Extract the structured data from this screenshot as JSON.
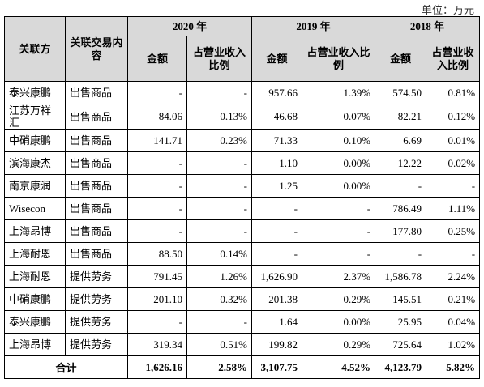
{
  "unit": "单位：万元",
  "table": {
    "header": {
      "party": "关联方",
      "content": "关联交易内容",
      "years": [
        {
          "year": "2020 年",
          "amount": "金额",
          "ratio": "占营业收入比例"
        },
        {
          "year": "2019 年",
          "amount": "金额",
          "ratio": "占营业收入比例"
        },
        {
          "year": "2018 年",
          "amount": "金额",
          "ratio": "占营业收入比例"
        }
      ]
    },
    "rows": [
      [
        "泰兴康鹏",
        "出售商品",
        "-",
        "-",
        "957.66",
        "1.39%",
        "574.50",
        "0.81%"
      ],
      [
        "江苏万祥汇",
        "出售商品",
        "84.06",
        "0.13%",
        "46.68",
        "0.07%",
        "82.21",
        "0.12%"
      ],
      [
        "中硝康鹏",
        "出售商品",
        "141.71",
        "0.23%",
        "71.33",
        "0.10%",
        "6.69",
        "0.01%"
      ],
      [
        "滨海康杰",
        "出售商品",
        "-",
        "-",
        "1.10",
        "0.00%",
        "12.22",
        "0.02%"
      ],
      [
        "南京康润",
        "出售商品",
        "-",
        "-",
        "1.25",
        "0.00%",
        "-",
        "-"
      ],
      [
        "Wisecon",
        "出售商品",
        "-",
        "-",
        "-",
        "-",
        "786.49",
        "1.11%"
      ],
      [
        "上海昂博",
        "出售商品",
        "-",
        "-",
        "-",
        "-",
        "177.80",
        "0.25%"
      ],
      [
        "上海耐恩",
        "出售商品",
        "88.50",
        "0.14%",
        "-",
        "-",
        "-",
        "-"
      ],
      [
        "上海耐恩",
        "提供劳务",
        "791.45",
        "1.26%",
        "1,626.90",
        "2.37%",
        "1,586.78",
        "2.24%"
      ],
      [
        "中硝康鹏",
        "提供劳务",
        "201.10",
        "0.32%",
        "201.38",
        "0.29%",
        "145.51",
        "0.21%"
      ],
      [
        "泰兴康鹏",
        "提供劳务",
        "-",
        "-",
        "1.64",
        "0.00%",
        "25.95",
        "0.04%"
      ],
      [
        "上海昂博",
        "提供劳务",
        "319.34",
        "0.51%",
        "199.82",
        "0.29%",
        "725.64",
        "1.02%"
      ]
    ],
    "total": {
      "label": "合计",
      "cells": [
        "1,626.16",
        "2.58%",
        "3,107.75",
        "4.52%",
        "4,123.79",
        "5.82%"
      ]
    }
  }
}
